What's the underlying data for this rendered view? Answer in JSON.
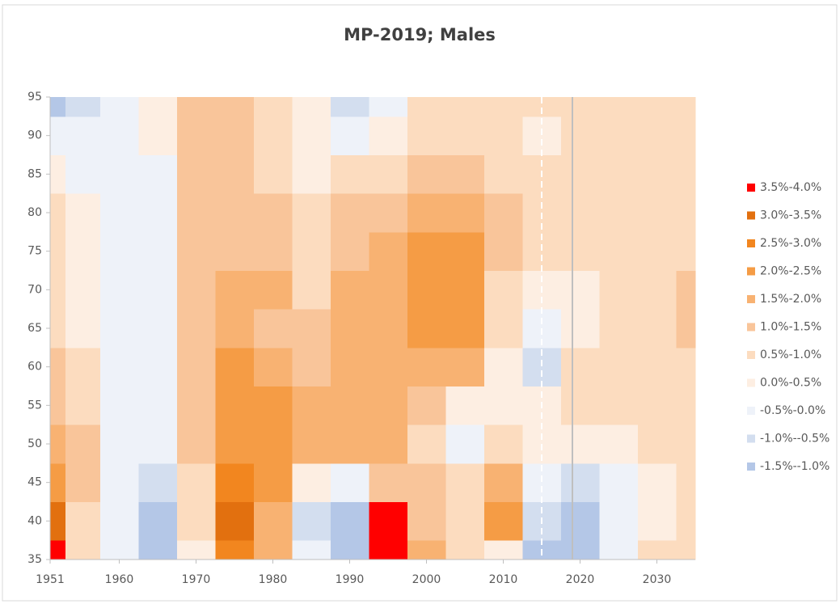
{
  "chart_data": {
    "type": "heatmap",
    "title": "MP-2019; Males",
    "x": [
      1951,
      1955,
      1960,
      1965,
      1970,
      1975,
      1980,
      1985,
      1990,
      1995,
      2000,
      2005,
      2010,
      2015,
      2020,
      2025,
      2030,
      2035
    ],
    "y": [
      35,
      40,
      45,
      50,
      55,
      60,
      65,
      70,
      75,
      80,
      85,
      90,
      95
    ],
    "z": [
      [
        3.6,
        0.5,
        -0.3,
        -1.2,
        0.2,
        2.5,
        1.5,
        -0.5,
        -1.2,
        3.7,
        1.5,
        0.8,
        0.3,
        -1.2,
        -1.2,
        -0.3,
        0.5,
        0.5
      ],
      [
        3.0,
        0.8,
        -0.3,
        -1.1,
        0.5,
        3.2,
        1.8,
        -0.6,
        -1.2,
        3.6,
        1.2,
        0.8,
        2.3,
        -1.0,
        -1.1,
        -0.4,
        0.4,
        0.5
      ],
      [
        2.0,
        1.0,
        -0.2,
        -0.6,
        0.8,
        2.8,
        2.0,
        0.3,
        -0.3,
        1.2,
        1.0,
        0.8,
        1.5,
        -0.5,
        -1.0,
        -0.3,
        0.4,
        0.5
      ],
      [
        1.5,
        1.0,
        -0.2,
        -0.2,
        1.2,
        2.3,
        2.0,
        1.5,
        1.5,
        1.5,
        0.7,
        -0.3,
        0.8,
        0.2,
        0.3,
        0.4,
        0.5,
        0.5
      ],
      [
        1.2,
        0.8,
        -0.2,
        -0.2,
        1.3,
        2.3,
        2.2,
        1.8,
        1.8,
        1.5,
        1.0,
        0.4,
        0.2,
        0.2,
        0.5,
        0.5,
        0.5,
        0.5
      ],
      [
        1.0,
        0.5,
        -0.3,
        -0.3,
        1.3,
        2.3,
        1.5,
        1.4,
        1.7,
        1.5,
        1.7,
        1.5,
        0.2,
        -0.8,
        0.5,
        0.5,
        0.5,
        0.5
      ],
      [
        0.8,
        0.3,
        -0.4,
        -0.3,
        1.3,
        1.8,
        1.4,
        1.0,
        1.7,
        1.8,
        2.2,
        2.2,
        0.5,
        -0.3,
        0.3,
        0.5,
        0.5,
        1.0
      ],
      [
        0.6,
        0.2,
        -0.4,
        -0.3,
        1.2,
        1.5,
        1.5,
        0.9,
        1.7,
        1.9,
        2.4,
        2.2,
        0.8,
        0.2,
        0.3,
        0.5,
        0.5,
        1.0
      ],
      [
        0.6,
        0.2,
        -0.4,
        -0.3,
        1.2,
        1.3,
        1.3,
        0.9,
        1.4,
        1.7,
        2.1,
        2.1,
        1.0,
        0.5,
        0.5,
        0.5,
        0.5,
        0.5
      ],
      [
        0.5,
        0.1,
        -0.4,
        -0.2,
        1.1,
        1.2,
        1.0,
        0.6,
        1.0,
        1.3,
        1.5,
        1.7,
        1.0,
        0.5,
        0.5,
        0.5,
        0.5,
        0.5
      ],
      [
        0.3,
        -0.1,
        -0.4,
        -0.1,
        1.0,
        1.0,
        0.7,
        0.2,
        0.5,
        0.8,
        1.2,
        1.3,
        0.8,
        0.5,
        0.5,
        0.5,
        0.5,
        0.5
      ],
      [
        -0.4,
        -0.4,
        -0.4,
        0.0,
        1.0,
        1.0,
        0.5,
        0.2,
        -0.1,
        0.3,
        0.7,
        0.8,
        0.7,
        0.3,
        0.5,
        0.5,
        0.5,
        0.5
      ],
      [
        -1.1,
        -0.8,
        -0.3,
        0.2,
        1.0,
        1.0,
        0.6,
        0.0,
        -0.6,
        -0.3,
        0.5,
        0.6,
        0.6,
        0.5,
        0.5,
        0.5,
        0.5,
        0.5
      ]
    ],
    "bins": [
      {
        "name": "3.5%-4.0%",
        "color": "#ff0000",
        "min": 3.5,
        "max": 4.0
      },
      {
        "name": "3.0%-3.5%",
        "color": "#e2700f",
        "min": 3.0,
        "max": 3.5
      },
      {
        "name": "2.5%-3.0%",
        "color": "#f2861f",
        "min": 2.5,
        "max": 3.0
      },
      {
        "name": "2.0%-2.5%",
        "color": "#f59c45",
        "min": 2.0,
        "max": 2.5
      },
      {
        "name": "1.5%-2.0%",
        "color": "#f8b272",
        "min": 1.5,
        "max": 2.0
      },
      {
        "name": "1.0%-1.5%",
        "color": "#f9c59a",
        "min": 1.0,
        "max": 1.5
      },
      {
        "name": "0.5%-1.0%",
        "color": "#fcdcbf",
        "min": 0.5,
        "max": 1.0
      },
      {
        "name": "0.0%-0.5%",
        "color": "#fdeee2",
        "min": 0.0,
        "max": 0.5
      },
      {
        "name": "-0.5%-0.0%",
        "color": "#eef2f9",
        "min": -0.5,
        "max": 0.0
      },
      {
        "name": "-1.0%--0.5%",
        "color": "#d3deef",
        "min": -1.0,
        "max": -0.5
      },
      {
        "name": "-1.5%--1.0%",
        "color": "#b4c7e7",
        "min": -1.5,
        "max": -1.0
      }
    ],
    "xlim": [
      1951,
      2035
    ],
    "xticks": [
      1951,
      1960,
      1970,
      1980,
      1990,
      2000,
      2010,
      2020,
      2030
    ],
    "ylim": [
      35,
      95
    ],
    "yticks": [
      35,
      40,
      45,
      50,
      55,
      60,
      65,
      70,
      75,
      80,
      85,
      90,
      95
    ],
    "vlines": [
      {
        "x": 2015,
        "color": "#ffffff",
        "dashed": true
      },
      {
        "x": 2019,
        "color": "#bfbfbf",
        "dashed": false
      }
    ],
    "legend_position": "right"
  }
}
